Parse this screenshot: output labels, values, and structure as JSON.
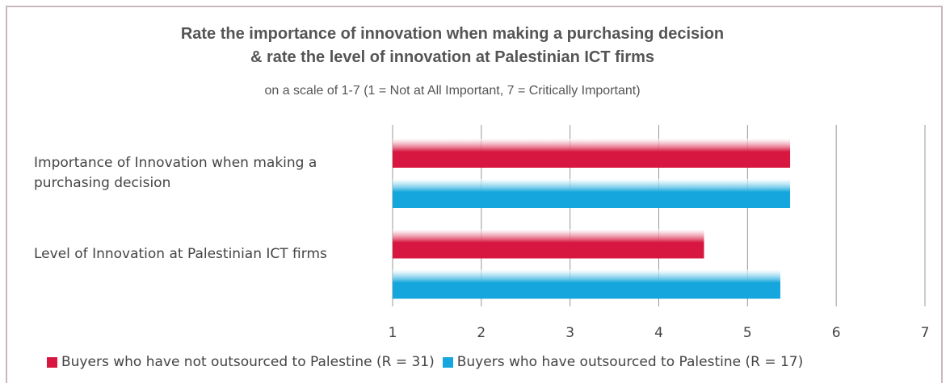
{
  "chart_data": {
    "type": "bar",
    "orientation": "horizontal",
    "title": "Rate the importance of innovation when making a purchasing decision",
    "title_line2": "& rate the level of innovation at Palestinian ICT firms",
    "subtitle": "on a scale of 1-7 (1 = Not at All Important, 7 = Critically Important)",
    "categories": [
      "Importance of Innovation when making a purchasing decision",
      "Level of Innovation at Palestinian ICT firms"
    ],
    "series": [
      {
        "name": "Buyers who have not outsourced to Palestine (R = 31)",
        "color": "#d7173f",
        "values": [
          5.48,
          4.51
        ]
      },
      {
        "name": "Buyers who have outsourced to Palestine (R = 17)",
        "color": "#14a6dc",
        "values": [
          5.48,
          5.37
        ]
      }
    ],
    "xlim": [
      1,
      7
    ],
    "xticks": [
      1,
      2,
      3,
      4,
      5,
      6,
      7
    ],
    "grid": true,
    "legend": "bottom"
  }
}
